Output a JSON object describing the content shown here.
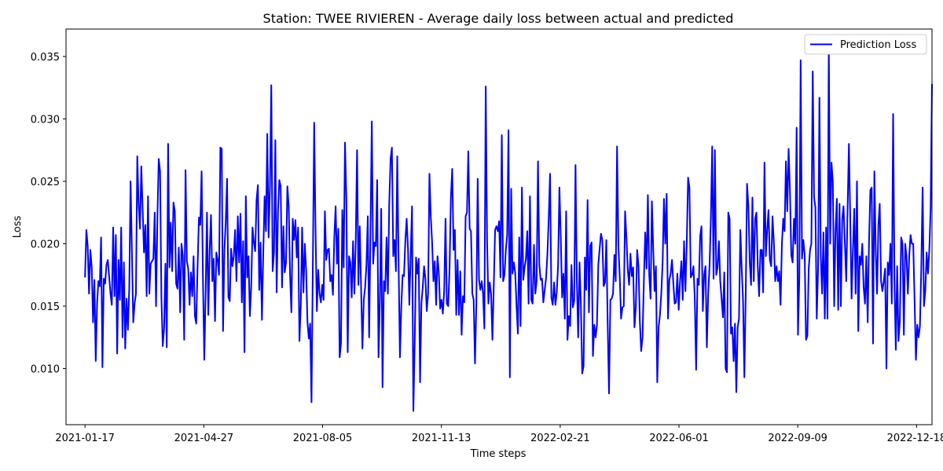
{
  "chart_data": {
    "type": "line",
    "title": "Station: TWEE RIVIEREN - Average daily loss between actual and predicted",
    "xlabel": "Time steps",
    "ylabel": "Loss",
    "x_ticks": [
      "2021-01-17",
      "2021-04-27",
      "2021-08-05",
      "2021-11-13",
      "2022-02-21",
      "2022-06-01",
      "2022-09-09",
      "2022-12-18"
    ],
    "y_ticks": [
      "0.010",
      "0.015",
      "0.020",
      "0.025",
      "0.030",
      "0.035"
    ],
    "ylim": [
      0.0055,
      0.0372
    ],
    "xlim": [
      "2021-01-01",
      "2022-12-31"
    ],
    "x_start": "2021-01-17",
    "x_end": "2022-12-31",
    "legend": "top-right",
    "grid": false,
    "series": [
      {
        "name": "Prediction Loss",
        "color": "#0000ff",
        "values": [
          0.0173,
          0.0211,
          0.0198,
          0.016,
          0.0195,
          0.0181,
          0.0137,
          0.0171,
          0.0106,
          0.0152,
          0.017,
          0.0166,
          0.0205,
          0.0101,
          0.0172,
          0.0168,
          0.0183,
          0.0187,
          0.0174,
          0.016,
          0.0151,
          0.0213,
          0.0158,
          0.0207,
          0.0112,
          0.0187,
          0.0155,
          0.0213,
          0.0125,
          0.0185,
          0.0116,
          0.0156,
          0.0131,
          0.0164,
          0.025,
          0.0193,
          0.0137,
          0.0152,
          0.016,
          0.027,
          0.0232,
          0.0212,
          0.0262,
          0.0228,
          0.0193,
          0.0215,
          0.0158,
          0.0238,
          0.016,
          0.0184,
          0.0186,
          0.0188,
          0.0225,
          0.015,
          0.022,
          0.0268,
          0.0258,
          0.0157,
          0.0118,
          0.0132,
          0.0184,
          0.0117,
          0.028,
          0.0181,
          0.0217,
          0.0178,
          0.0233,
          0.0226,
          0.0168,
          0.0164,
          0.0197,
          0.0145,
          0.02,
          0.019,
          0.0123,
          0.0259,
          0.0186,
          0.018,
          0.0151,
          0.0177,
          0.0158,
          0.019,
          0.0142,
          0.0136,
          0.0182,
          0.0221,
          0.0215,
          0.0258,
          0.0172,
          0.0107,
          0.0161,
          0.0225,
          0.0143,
          0.0195,
          0.0223,
          0.017,
          0.0188,
          0.0138,
          0.0193,
          0.0187,
          0.0175,
          0.0277,
          0.0276,
          0.013,
          0.0195,
          0.0217,
          0.0252,
          0.0157,
          0.0154,
          0.0196,
          0.0182,
          0.019,
          0.0211,
          0.017,
          0.0222,
          0.0185,
          0.0224,
          0.0153,
          0.0202,
          0.0113,
          0.0238,
          0.0173,
          0.019,
          0.0142,
          0.0165,
          0.0213,
          0.0201,
          0.0194,
          0.0235,
          0.0247,
          0.0163,
          0.0201,
          0.0139,
          0.0192,
          0.0238,
          0.021,
          0.0288,
          0.0205,
          0.0246,
          0.0327,
          0.0178,
          0.0193,
          0.0283,
          0.0161,
          0.0226,
          0.0251,
          0.0246,
          0.0165,
          0.0214,
          0.0177,
          0.0185,
          0.0246,
          0.023,
          0.0175,
          0.0145,
          0.022,
          0.0203,
          0.0219,
          0.0189,
          0.0213,
          0.0122,
          0.015,
          0.0213,
          0.0161,
          0.02,
          0.0179,
          0.0137,
          0.0124,
          0.0136,
          0.0073,
          0.0183,
          0.0297,
          0.021,
          0.0146,
          0.0179,
          0.016,
          0.0153,
          0.0167,
          0.0155,
          0.0226,
          0.0187,
          0.0195,
          0.0196,
          0.017,
          0.0175,
          0.0159,
          0.0205,
          0.023,
          0.0184,
          0.0212,
          0.0109,
          0.012,
          0.0227,
          0.0181,
          0.0281,
          0.0236,
          0.0113,
          0.019,
          0.0185,
          0.0157,
          0.0202,
          0.016,
          0.0202,
          0.0275,
          0.0167,
          0.0214,
          0.0165,
          0.0116,
          0.0155,
          0.0165,
          0.0183,
          0.0222,
          0.0125,
          0.0209,
          0.0298,
          0.0184,
          0.0201,
          0.0198,
          0.0251,
          0.0109,
          0.0153,
          0.0228,
          0.0085,
          0.017,
          0.0162,
          0.0205,
          0.016,
          0.0232,
          0.0268,
          0.0277,
          0.019,
          0.0203,
          0.0178,
          0.027,
          0.0184,
          0.0109,
          0.015,
          0.0175,
          0.0174,
          0.0202,
          0.022,
          0.0196,
          0.0151,
          0.0191,
          0.023,
          0.0066,
          0.012,
          0.0189,
          0.0176,
          0.0188,
          0.0089,
          0.0152,
          0.0165,
          0.0182,
          0.0172,
          0.0146,
          0.016,
          0.0256,
          0.0222,
          0.0201,
          0.017,
          0.0186,
          0.0151,
          0.019,
          0.0177,
          0.0148,
          0.0155,
          0.0144,
          0.0162,
          0.022,
          0.0152,
          0.015,
          0.018,
          0.0237,
          0.026,
          0.0195,
          0.0211,
          0.0143,
          0.0187,
          0.0143,
          0.0178,
          0.0127,
          0.0158,
          0.0153,
          0.0222,
          0.0225,
          0.0274,
          0.0212,
          0.021,
          0.016,
          0.0155,
          0.0104,
          0.0152,
          0.0252,
          0.0171,
          0.0163,
          0.017,
          0.016,
          0.0132,
          0.0326,
          0.0203,
          0.0152,
          0.0169,
          0.016,
          0.0123,
          0.0166,
          0.0211,
          0.0214,
          0.021,
          0.0218,
          0.0173,
          0.0287,
          0.017,
          0.0175,
          0.0195,
          0.0207,
          0.0291,
          0.0093,
          0.0244,
          0.0176,
          0.0185,
          0.0177,
          0.015,
          0.0128,
          0.0205,
          0.0134,
          0.0245,
          0.0171,
          0.0181,
          0.0188,
          0.021,
          0.0152,
          0.0238,
          0.0155,
          0.0152,
          0.0199,
          0.016,
          0.017,
          0.0266,
          0.0183,
          0.0171,
          0.0172,
          0.0153,
          0.0163,
          0.0172,
          0.0191,
          0.022,
          0.0256,
          0.0157,
          0.0151,
          0.0169,
          0.0151,
          0.0161,
          0.0183,
          0.0245,
          0.0205,
          0.0157,
          0.0176,
          0.014,
          0.0226,
          0.0123,
          0.0142,
          0.0134,
          0.0183,
          0.0149,
          0.0154,
          0.0263,
          0.017,
          0.0125,
          0.0185,
          0.0152,
          0.0096,
          0.0102,
          0.0189,
          0.0163,
          0.0235,
          0.0145,
          0.0198,
          0.0201,
          0.011,
          0.0135,
          0.0125,
          0.0135,
          0.0183,
          0.0196,
          0.0208,
          0.0203,
          0.0166,
          0.0169,
          0.0203,
          0.0136,
          0.008,
          0.0155,
          0.0156,
          0.016,
          0.0191,
          0.017,
          0.0278,
          0.0198,
          0.0174,
          0.014,
          0.0149,
          0.015,
          0.0226,
          0.0205,
          0.0179,
          0.0167,
          0.0192,
          0.0174,
          0.0181,
          0.0133,
          0.0149,
          0.0195,
          0.0182,
          0.0138,
          0.0114,
          0.0125,
          0.017,
          0.0209,
          0.018,
          0.0239,
          0.0175,
          0.0156,
          0.0234,
          0.0195,
          0.0162,
          0.0182,
          0.0089,
          0.0133,
          0.0143,
          0.016,
          0.0185,
          0.0236,
          0.02,
          0.024,
          0.014,
          0.0171,
          0.0176,
          0.0187,
          0.0168,
          0.0152,
          0.0153,
          0.0176,
          0.0147,
          0.017,
          0.0186,
          0.0155,
          0.0202,
          0.0162,
          0.02,
          0.0253,
          0.0245,
          0.0173,
          0.0175,
          0.0182,
          0.0156,
          0.0099,
          0.0172,
          0.0167,
          0.0206,
          0.0214,
          0.0146,
          0.0175,
          0.0182,
          0.0117,
          0.016,
          0.0182,
          0.022,
          0.0278,
          0.0172,
          0.0275,
          0.0175,
          0.0181,
          0.0202,
          0.017,
          0.0156,
          0.0141,
          0.0177,
          0.01,
          0.0097,
          0.0225,
          0.022,
          0.0128,
          0.0133,
          0.0106,
          0.0136,
          0.0081,
          0.0133,
          0.014,
          0.0211,
          0.018,
          0.0155,
          0.0093,
          0.016,
          0.0248,
          0.023,
          0.0185,
          0.0167,
          0.0237,
          0.017,
          0.022,
          0.0225,
          0.0182,
          0.0158,
          0.0195,
          0.0195,
          0.0161,
          0.0265,
          0.019,
          0.0211,
          0.0227,
          0.0187,
          0.0182,
          0.0222,
          0.0201,
          0.017,
          0.0182,
          0.017,
          0.0178,
          0.0151,
          0.02,
          0.022,
          0.021,
          0.0266,
          0.0226,
          0.0276,
          0.0243,
          0.0191,
          0.0185,
          0.022,
          0.02,
          0.0293,
          0.0127,
          0.0173,
          0.0347,
          0.0188,
          0.0203,
          0.0191,
          0.0123,
          0.0126,
          0.018,
          0.0195,
          0.02,
          0.0338,
          0.0237,
          0.0229,
          0.014,
          0.018,
          0.0317,
          0.019,
          0.016,
          0.0209,
          0.014,
          0.0213,
          0.014,
          0.0358,
          0.02,
          0.0265,
          0.025,
          0.015,
          0.021,
          0.0236,
          0.0147,
          0.0232,
          0.015,
          0.022,
          0.023,
          0.02,
          0.017,
          0.0227,
          0.028,
          0.022,
          0.0156,
          0.0195,
          0.0228,
          0.016,
          0.025,
          0.013,
          0.019,
          0.0183,
          0.02,
          0.0165,
          0.0152,
          0.019,
          0.0137,
          0.0201,
          0.0243,
          0.0245,
          0.012,
          0.0258,
          0.0195,
          0.016,
          0.0215,
          0.0232,
          0.017,
          0.0162,
          0.017,
          0.018,
          0.01,
          0.0185,
          0.0175,
          0.02,
          0.0152,
          0.0304,
          0.017,
          0.0115,
          0.0182,
          0.0122,
          0.0138,
          0.0205,
          0.02,
          0.0127,
          0.02,
          0.019,
          0.016,
          0.019,
          0.0207,
          0.02,
          0.02,
          0.0155,
          0.0107,
          0.0135,
          0.0125,
          0.0134,
          0.018,
          0.0245,
          0.015,
          0.0162,
          0.0193,
          0.0176,
          0.0195,
          0.0229,
          0.0328
        ]
      }
    ]
  }
}
